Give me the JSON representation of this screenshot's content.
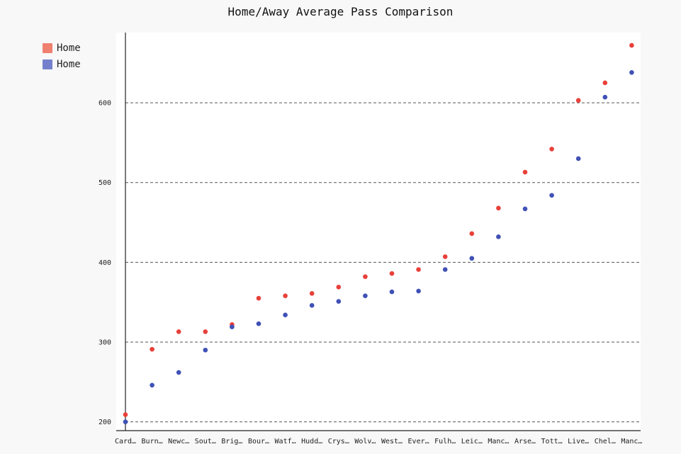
{
  "chart_data": {
    "type": "scatter",
    "title": "Home/Away Average Pass Comparison",
    "xlabel": "",
    "ylabel": "",
    "categories": [
      "Card…",
      "Burn…",
      "Newc…",
      "Sout…",
      "Brig…",
      "Bour…",
      "Watf…",
      "Hudd…",
      "Crys…",
      "Wolv…",
      "West…",
      "Ever…",
      "Fulh…",
      "Leic…",
      "Manc…",
      "Arse…",
      "Tott…",
      "Live…",
      "Chel…",
      "Manc…"
    ],
    "ylim": [
      189,
      688
    ],
    "yticks": [
      200,
      300,
      400,
      500,
      600
    ],
    "grid": true,
    "legend_position": "top-left",
    "series": [
      {
        "name": "Home",
        "color": "#e8403a",
        "values": [
          209,
          291,
          313,
          313,
          322,
          355,
          358,
          361,
          369,
          382,
          386,
          391,
          407,
          436,
          468,
          513,
          542,
          603,
          625,
          672
        ]
      },
      {
        "name": "Home",
        "color": "#3f51b5",
        "values": [
          200,
          246,
          262,
          290,
          319,
          323,
          334,
          346,
          351,
          358,
          363,
          364,
          391,
          405,
          432,
          467,
          484,
          530,
          607,
          638
        ]
      }
    ]
  },
  "legend": {
    "items": [
      {
        "label": "Home",
        "color": "#f08070"
      },
      {
        "label": "Home",
        "color": "#7580cc"
      }
    ]
  }
}
